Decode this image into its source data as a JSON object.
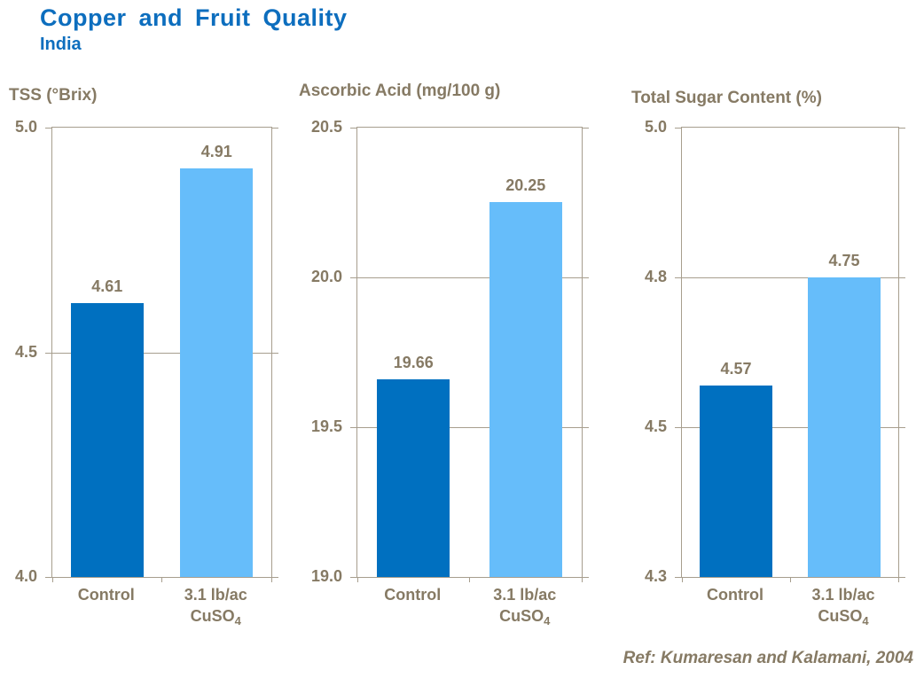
{
  "header": {
    "title": "Copper and Fruit Quality",
    "subtitle": "India"
  },
  "footer": {
    "reference": "Ref: Kumaresan and Kalamani, 2004"
  },
  "colors": {
    "title": "#0D6EBE",
    "axis_text": "#867A64",
    "axis_line": "#A79E8E",
    "bar_control": "#0070C0",
    "bar_treatment": "#66BDFA",
    "background": "#FFFFFF"
  },
  "chart_data": [
    {
      "type": "bar",
      "title": "TSS (°Brix)",
      "categories": [
        "Control",
        "3.1 lb/ac CuSO4"
      ],
      "category_lines": [
        [
          {
            "text": "Control"
          }
        ],
        [
          {
            "text": "3.1 lb/ac"
          },
          {
            "text": "CuSO",
            "sub": "4"
          }
        ]
      ],
      "values": [
        4.61,
        4.91
      ],
      "value_labels": [
        "4.61",
        "4.91"
      ],
      "ylim": [
        4.0,
        5.0
      ],
      "ytick_labels": [
        "5.0",
        "4.5",
        "4.0"
      ],
      "bar_colors": [
        "#0070C0",
        "#66BDFA"
      ],
      "grid": true,
      "legend": false
    },
    {
      "type": "bar",
      "title": "Ascorbic Acid (mg/100 g)",
      "categories": [
        "Control",
        "3.1 lb/ac CuSO4"
      ],
      "category_lines": [
        [
          {
            "text": "Control"
          }
        ],
        [
          {
            "text": "3.1 lb/ac"
          },
          {
            "text": "CuSO",
            "sub": "4"
          }
        ]
      ],
      "values": [
        19.66,
        20.25
      ],
      "value_labels": [
        "19.66",
        "20.25"
      ],
      "ylim": [
        19.0,
        20.5
      ],
      "ytick_labels": [
        "20.5",
        "20.0",
        "19.5",
        "19.0"
      ],
      "bar_colors": [
        "#0070C0",
        "#66BDFA"
      ],
      "grid": true,
      "legend": false
    },
    {
      "type": "bar",
      "title": "Total Sugar Content (%)",
      "categories": [
        "Control",
        "3.1 lb/ac CuSO4"
      ],
      "category_lines": [
        [
          {
            "text": "Control"
          }
        ],
        [
          {
            "text": "3.1 lb/ac"
          },
          {
            "text": "CuSO",
            "sub": "4"
          }
        ]
      ],
      "values": [
        4.57,
        4.75
      ],
      "value_labels": [
        "4.57",
        "4.75"
      ],
      "ylim": [
        4.25,
        5.0
      ],
      "ytick_labels": [
        "5.0",
        "4.8",
        "4.5",
        "4.3"
      ],
      "bar_colors": [
        "#0070C0",
        "#66BDFA"
      ],
      "grid": true,
      "legend": false
    }
  ]
}
